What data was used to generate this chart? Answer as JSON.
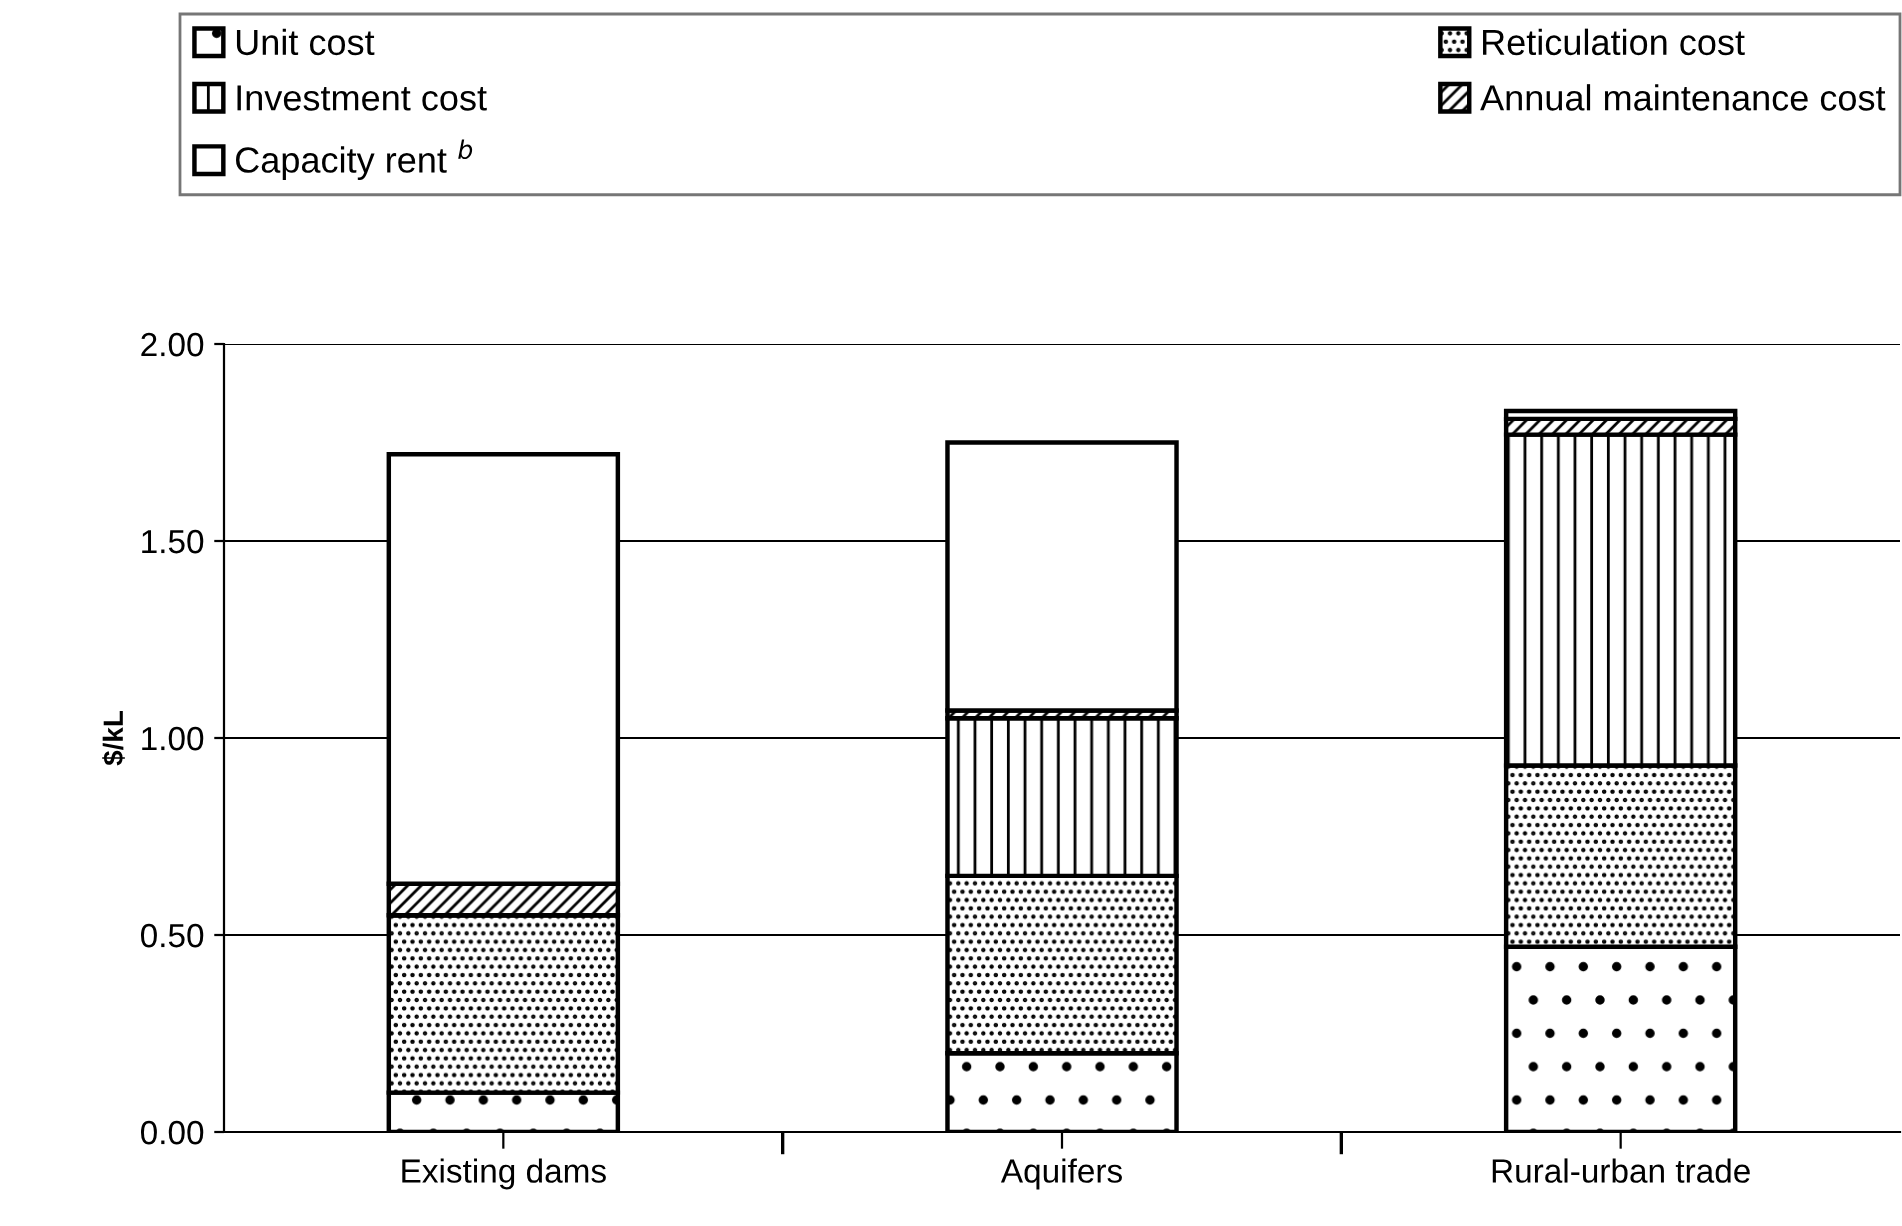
{
  "chart_data": {
    "type": "bar",
    "stacked": true,
    "ylabel": "$/kL",
    "categories": [
      "Existing dams",
      "Aquifers",
      "Rural-urban trade"
    ],
    "series": [
      {
        "name": "Unit cost",
        "color": "#000000",
        "values": [
          0.1,
          0.2,
          0.47
        ]
      },
      {
        "name": "Reticulation cost",
        "color": "#000000",
        "values": [
          0.45,
          0.45,
          0.46
        ]
      },
      {
        "name": "Investment cost",
        "color": "#000000",
        "values": [
          0,
          0.4,
          0.84
        ]
      },
      {
        "name": "Annual maintenance cost",
        "color": "#000000",
        "values": [
          0.08,
          0.02,
          0.04
        ]
      },
      {
        "name": "Capacity rent $^{b}$",
        "color": "#000000",
        "values": [
          1.09,
          0.68,
          0.02
        ]
      }
    ],
    "ylim": [
      0,
      2
    ],
    "yticks": [
      {
        "value": 0,
        "label": "0.00"
      },
      {
        "value": 0.5,
        "label": "0.50"
      },
      {
        "value": 1,
        "label": "1.00"
      },
      {
        "value": 1.5,
        "label": "1.50"
      },
      {
        "value": 2,
        "label": "2.00"
      }
    ],
    "grid": "y",
    "legend": "top"
  }
}
